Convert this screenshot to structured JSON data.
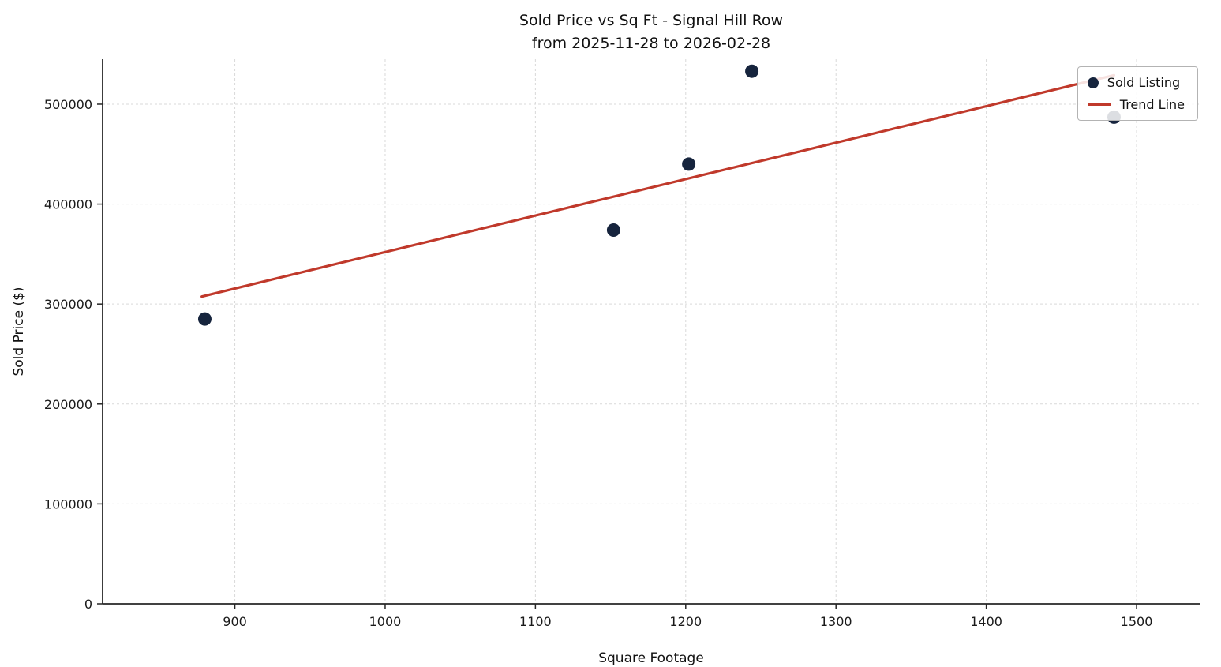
{
  "title": {
    "line1": "Sold Price vs Sq Ft - Signal Hill Row",
    "line2": "from 2025-11-28 to 2026-02-28"
  },
  "axes": {
    "x_label": "Square Footage",
    "y_label": "Sold Price ($)"
  },
  "legend": {
    "position": "upper right",
    "items": [
      {
        "label": "Sold Listing",
        "type": "marker",
        "color": "#16243d"
      },
      {
        "label": "Trend Line",
        "type": "line",
        "color": "#c0392b"
      }
    ]
  },
  "chart_data": {
    "type": "scatter",
    "title": "Sold Price vs Sq Ft - Signal Hill Row",
    "subtitle": "from 2025-11-28 to 2026-02-28",
    "xlabel": "Square Footage",
    "ylabel": "Sold Price ($)",
    "xlim": [
      812,
      1542
    ],
    "ylim": [
      0,
      545000
    ],
    "xticks": [
      900,
      1000,
      1100,
      1200,
      1300,
      1400,
      1500
    ],
    "yticks": [
      0,
      100000,
      200000,
      300000,
      400000,
      500000
    ],
    "grid": true,
    "legend_position": "upper right",
    "series": [
      {
        "name": "Sold Listing",
        "type": "scatter",
        "color": "#16243d",
        "points": [
          {
            "x": 880,
            "y": 285000
          },
          {
            "x": 1152,
            "y": 374000
          },
          {
            "x": 1202,
            "y": 440000
          },
          {
            "x": 1244,
            "y": 533000
          },
          {
            "x": 1485,
            "y": 487000
          }
        ]
      }
    ],
    "trend": {
      "name": "Trend Line",
      "color": "#c0392b",
      "x": [
        878,
        1485
      ],
      "y": [
        307500,
        529000
      ]
    }
  }
}
